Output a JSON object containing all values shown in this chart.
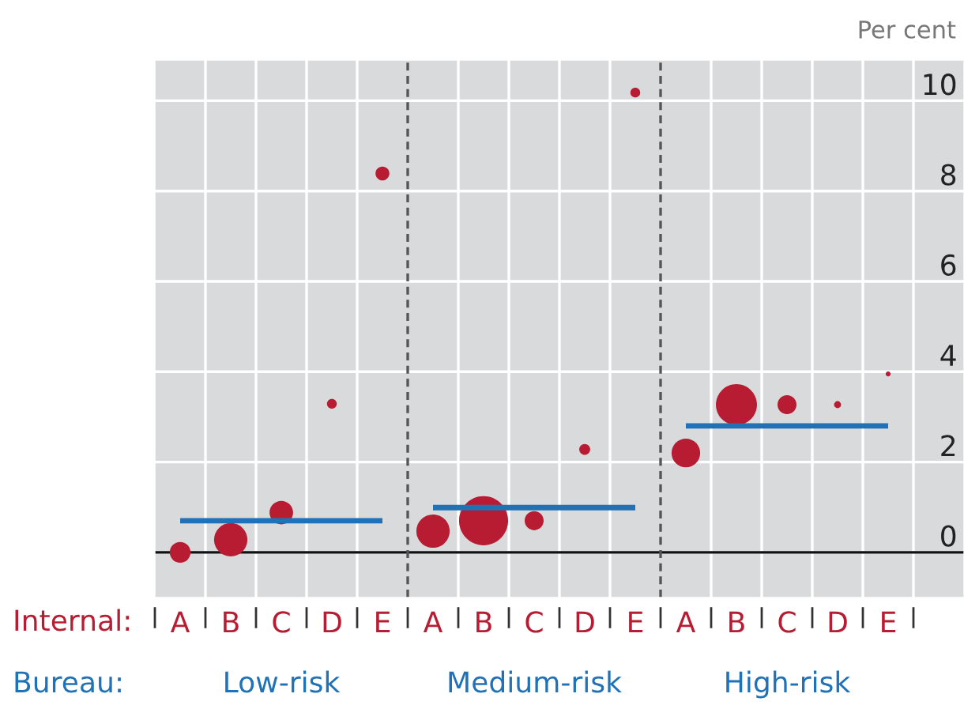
{
  "chart_data": {
    "type": "bubble",
    "categories": [
      "A",
      "B",
      "C",
      "D",
      "E",
      "A",
      "B",
      "C",
      "D",
      "E",
      "A",
      "B",
      "C",
      "D",
      "E",
      null
    ],
    "ylim": [
      -1,
      10.9
    ],
    "yticks": [
      0,
      2,
      4,
      6,
      8,
      10
    ],
    "ylabel": "Per cent",
    "xlabel": "Internal:",
    "grid": true,
    "series": [
      {
        "color": "#b71c32",
        "values": [
          0.0,
          0.28,
          0.88,
          3.29,
          8.39,
          0.47,
          0.7,
          0.7,
          2.28,
          10.18,
          2.2,
          3.27,
          3.27,
          3.27,
          3.95,
          null
        ],
        "sizes": [
          0.18,
          0.46,
          0.23,
          0.04,
          0.08,
          0.46,
          1,
          0.15,
          0.05,
          0.04,
          0.34,
          0.7,
          0.15,
          0.02,
          0.01,
          null
        ]
      },
      {
        "type": "line",
        "color": "#1f72b8",
        "values": [
          0.7,
          0.7,
          0.7,
          0.7,
          0.7,
          null,
          null,
          null,
          null,
          null,
          null,
          null,
          null,
          null,
          null,
          null
        ]
      },
      {
        "type": "line",
        "color": "#1f72b8",
        "values": [
          null,
          null,
          null,
          null,
          null,
          0.99,
          0.99,
          0.99,
          0.99,
          0.99,
          null,
          null,
          null,
          null,
          null,
          null
        ]
      },
      {
        "type": "line",
        "color": "#1f72b8",
        "values": [
          null,
          null,
          null,
          null,
          null,
          null,
          null,
          null,
          null,
          null,
          2.8,
          2.8,
          2.8,
          2.8,
          2.8,
          null
        ]
      }
    ],
    "annotations": [
      "Bureau:",
      "Low-risk",
      "Medium-risk",
      "High-risk"
    ]
  }
}
